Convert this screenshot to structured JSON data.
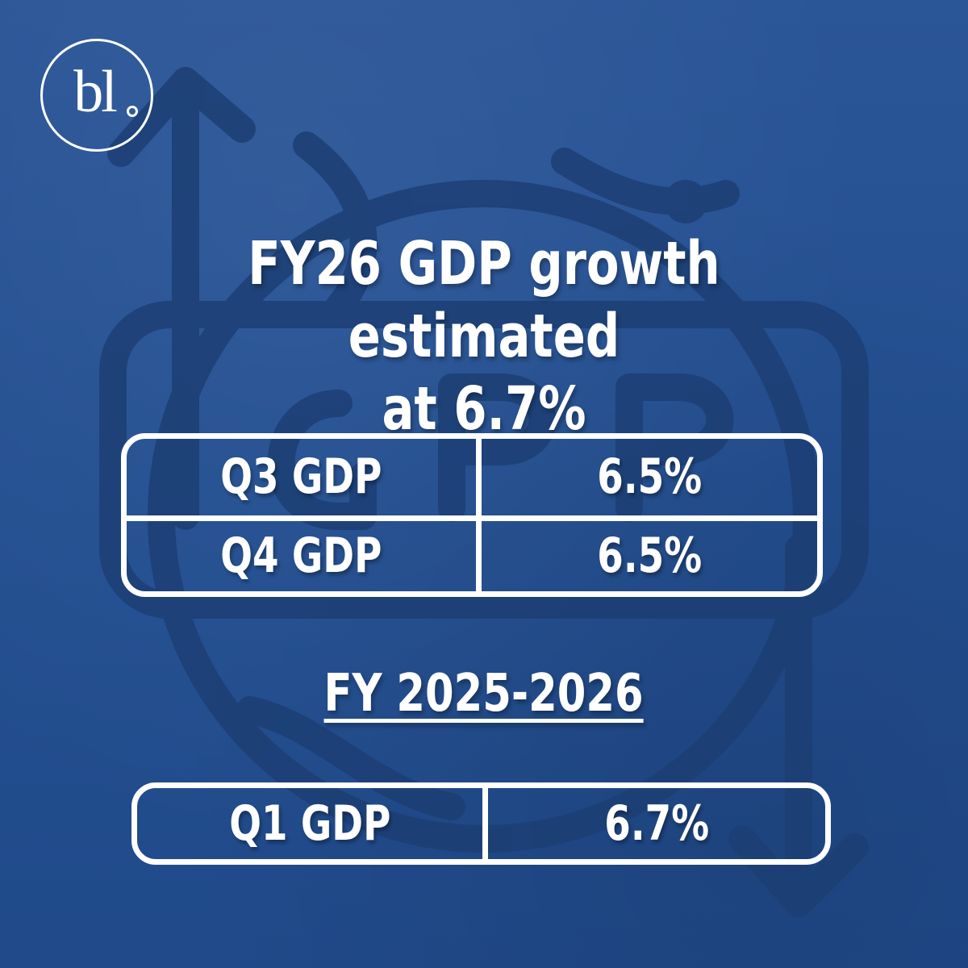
{
  "brand": {
    "logo_text": "bl"
  },
  "headline": {
    "line1": "FY26 GDP growth estimated",
    "line2": "at 6.7%"
  },
  "quarter_table": {
    "rows": [
      {
        "label": "Q3 GDP",
        "value": "6.5%"
      },
      {
        "label": "Q4 GDP",
        "value": "6.5%"
      }
    ]
  },
  "section": {
    "heading": "FY 2025-2026"
  },
  "fy_table": {
    "rows": [
      {
        "label": "Q1 GDP",
        "value": "6.7%"
      }
    ]
  },
  "colors": {
    "background": "#234f91",
    "foreground": "#ffffff",
    "background_art": "#1c3f74"
  },
  "icons": {
    "background": "globe-gdp-cycle-icon",
    "logo": "bl-logo"
  }
}
